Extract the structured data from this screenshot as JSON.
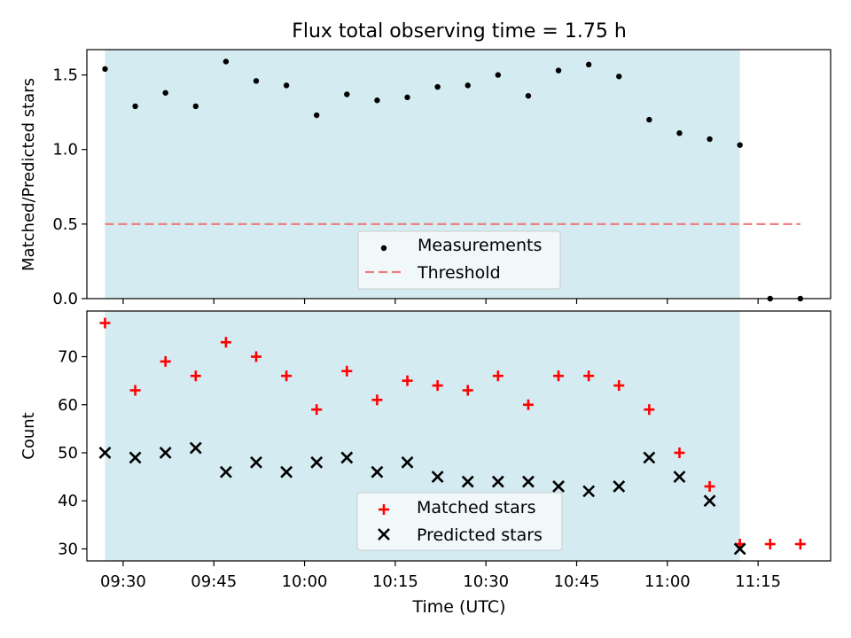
{
  "chart_data": {
    "title": "Flux total observing time = 1.75 h",
    "xlabel": "Time (UTC)",
    "xlim": [
      "09:24",
      "11:27"
    ],
    "xticks": [
      "09:30",
      "09:45",
      "10:00",
      "10:15",
      "10:30",
      "10:45",
      "11:00",
      "11:15"
    ],
    "observing_window": [
      "09:27",
      "11:12"
    ],
    "window_color": "#d4ebf1",
    "panels": [
      {
        "type": "scatter",
        "ylabel": "Matched/Predicted stars",
        "ylim": [
          0,
          1.67
        ],
        "yticks": [
          "0.0",
          "0.5",
          "1.0",
          "1.5"
        ],
        "legend_position": "lower center",
        "series": [
          {
            "name": "Measurements",
            "marker": "dot",
            "color": "#000000",
            "x": [
              "09:27",
              "09:32",
              "09:37",
              "09:42",
              "09:47",
              "09:52",
              "09:57",
              "10:02",
              "10:07",
              "10:12",
              "10:17",
              "10:22",
              "10:27",
              "10:32",
              "10:37",
              "10:42",
              "10:47",
              "10:52",
              "10:57",
              "11:02",
              "11:07",
              "11:12",
              "11:17",
              "11:22"
            ],
            "y": [
              1.54,
              1.29,
              1.38,
              1.29,
              1.59,
              1.46,
              1.43,
              1.23,
              1.37,
              1.33,
              1.35,
              1.42,
              1.43,
              1.5,
              1.36,
              1.53,
              1.57,
              1.49,
              1.2,
              1.11,
              1.07,
              1.03,
              0.0,
              0.0
            ]
          }
        ],
        "threshold": {
          "name": "Threshold",
          "value": 0.5,
          "from": "09:27",
          "to": "11:22",
          "color": "#f08080"
        }
      },
      {
        "type": "scatter",
        "ylabel": "Count",
        "ylim": [
          27.5,
          79.5
        ],
        "yticks": [
          "30",
          "40",
          "50",
          "60",
          "70"
        ],
        "legend_position": "lower center",
        "series": [
          {
            "name": "Matched stars",
            "marker": "plus",
            "color": "#ff0000",
            "x": [
              "09:27",
              "09:32",
              "09:37",
              "09:42",
              "09:47",
              "09:52",
              "09:57",
              "10:02",
              "10:07",
              "10:12",
              "10:17",
              "10:22",
              "10:27",
              "10:32",
              "10:37",
              "10:42",
              "10:47",
              "10:52",
              "10:57",
              "11:02",
              "11:07",
              "11:12",
              "11:17",
              "11:22"
            ],
            "y": [
              77,
              63,
              69,
              66,
              73,
              70,
              66,
              59,
              67,
              61,
              65,
              64,
              63,
              66,
              60,
              66,
              66,
              64,
              59,
              50,
              43,
              31,
              31,
              31
            ]
          },
          {
            "name": "Predicted stars",
            "marker": "x",
            "color": "#000000",
            "x": [
              "09:27",
              "09:32",
              "09:37",
              "09:42",
              "09:47",
              "09:52",
              "09:57",
              "10:02",
              "10:07",
              "10:12",
              "10:17",
              "10:22",
              "10:27",
              "10:32",
              "10:37",
              "10:42",
              "10:47",
              "10:52",
              "10:57",
              "11:02",
              "11:07",
              "11:12"
            ],
            "y": [
              50,
              49,
              50,
              51,
              46,
              48,
              46,
              48,
              49,
              46,
              48,
              45,
              44,
              44,
              44,
              43,
              42,
              43,
              49,
              45,
              40,
              30
            ]
          }
        ]
      }
    ]
  }
}
